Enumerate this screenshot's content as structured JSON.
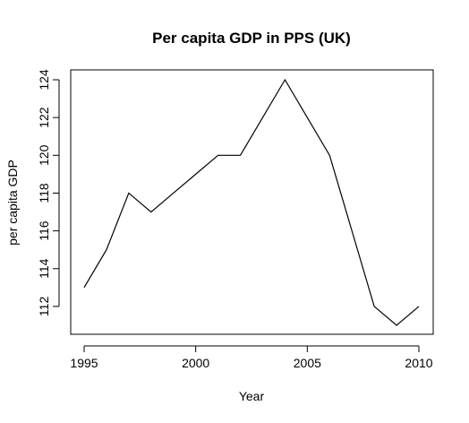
{
  "chart_data": {
    "type": "line",
    "title": "Per capita GDP in PPS (UK)",
    "xlabel": "Year",
    "ylabel": "per capita GDP",
    "x": [
      1995,
      1996,
      1997,
      1998,
      1999,
      2000,
      2001,
      2002,
      2003,
      2004,
      2005,
      2006,
      2007,
      2008,
      2009,
      2010
    ],
    "series": [
      {
        "values": [
          113,
          115,
          118,
          117,
          118,
          119,
          120,
          120,
          122,
          124,
          122,
          120,
          116,
          112,
          111,
          112
        ]
      }
    ],
    "xticks": [
      "1995",
      "2000",
      "2005",
      "2010"
    ],
    "yticks": [
      "112",
      "114",
      "116",
      "118",
      "120",
      "122",
      "124"
    ],
    "xlim": [
      1995,
      2010
    ],
    "ylim": [
      111,
      124
    ],
    "grid": false,
    "legend": "none",
    "line_color": "#000000"
  }
}
